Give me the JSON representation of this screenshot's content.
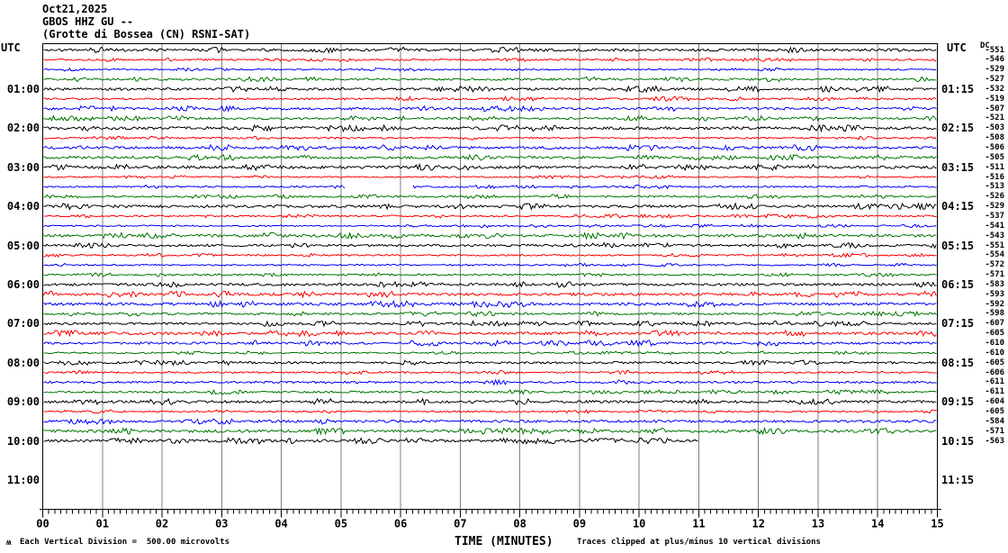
{
  "header": {
    "date": "Oct21,2025",
    "station": "GBOS HHZ GU --",
    "location": "(Grotte di Bossea (CN) RSNI-SAT)"
  },
  "corner_labels": {
    "utc_left": "UTC",
    "utc_right": "UTC",
    "dc_header": "DC"
  },
  "footer": {
    "mark": "ʍ",
    "scale_note": "Each Vertical Division =  500.00 microvolts",
    "xlabel": "TIME (MINUTES)",
    "clip_note": "Traces clipped at plus/minus 10 vertical divisions"
  },
  "chart_data": {
    "type": "line",
    "subtype": "helicorder_seismogram",
    "title": "GBOS HHZ GU -- (Grotte di Bossea (CN) RSNI-SAT) Oct21,2025",
    "xlabel": "TIME (MINUTES)",
    "x_tick_labels": [
      "00",
      "01",
      "02",
      "03",
      "04",
      "05",
      "06",
      "07",
      "08",
      "09",
      "10",
      "11",
      "12",
      "13",
      "14",
      "15"
    ],
    "x_range_minutes": [
      0,
      15
    ],
    "minor_ticks_per_minute": 10,
    "row_duration_minutes": 15,
    "vertical_division_microvolts": "500.00",
    "clip_vertical_divisions": 10,
    "grid": true,
    "grid_color": "#808080",
    "trace_color_cycle": [
      "#000000",
      "#ff0000",
      "#0000ff",
      "#007700"
    ],
    "left_hour_labels": [
      "01:00",
      "02:00",
      "03:00",
      "04:00",
      "05:00",
      "06:00",
      "07:00",
      "08:00",
      "09:00",
      "10:00",
      "11:00"
    ],
    "right_hour_labels": [
      "01:15",
      "02:15",
      "03:15",
      "04:15",
      "05:15",
      "06:15",
      "07:15",
      "08:15",
      "09:15",
      "10:15",
      "11:15"
    ],
    "rows": [
      {
        "start": "00:00",
        "dc": -551
      },
      {
        "start": "00:15",
        "dc": -546
      },
      {
        "start": "00:30",
        "dc": -529
      },
      {
        "start": "00:45",
        "dc": -527
      },
      {
        "start": "01:00",
        "dc": -532
      },
      {
        "start": "01:15",
        "dc": -519
      },
      {
        "start": "01:30",
        "dc": -507
      },
      {
        "start": "01:45",
        "dc": -521
      },
      {
        "start": "02:00",
        "dc": -503
      },
      {
        "start": "02:15",
        "dc": -508
      },
      {
        "start": "02:30",
        "dc": -506
      },
      {
        "start": "02:45",
        "dc": -505
      },
      {
        "start": "03:00",
        "dc": -511
      },
      {
        "start": "03:15",
        "dc": -516
      },
      {
        "start": "03:30",
        "dc": -513,
        "gap_frac": [
          0.338,
          0.413
        ]
      },
      {
        "start": "03:45",
        "dc": -526
      },
      {
        "start": "04:00",
        "dc": -529
      },
      {
        "start": "04:15",
        "dc": -537
      },
      {
        "start": "04:30",
        "dc": -541
      },
      {
        "start": "04:45",
        "dc": -543
      },
      {
        "start": "05:00",
        "dc": -551
      },
      {
        "start": "05:15",
        "dc": -554
      },
      {
        "start": "05:30",
        "dc": -572
      },
      {
        "start": "05:45",
        "dc": -571
      },
      {
        "start": "06:00",
        "dc": -583
      },
      {
        "start": "06:15",
        "dc": -593
      },
      {
        "start": "06:30",
        "dc": -592
      },
      {
        "start": "06:45",
        "dc": -598
      },
      {
        "start": "07:00",
        "dc": -607
      },
      {
        "start": "07:15",
        "dc": -605
      },
      {
        "start": "07:30",
        "dc": -610
      },
      {
        "start": "07:45",
        "dc": -610
      },
      {
        "start": "08:00",
        "dc": -605
      },
      {
        "start": "08:15",
        "dc": -606
      },
      {
        "start": "08:30",
        "dc": -611
      },
      {
        "start": "08:45",
        "dc": -611
      },
      {
        "start": "09:00",
        "dc": -604
      },
      {
        "start": "09:15",
        "dc": -605
      },
      {
        "start": "09:30",
        "dc": -584
      },
      {
        "start": "09:45",
        "dc": -571
      },
      {
        "start": "10:00",
        "dc": -563,
        "end_frac": 0.733
      }
    ]
  }
}
